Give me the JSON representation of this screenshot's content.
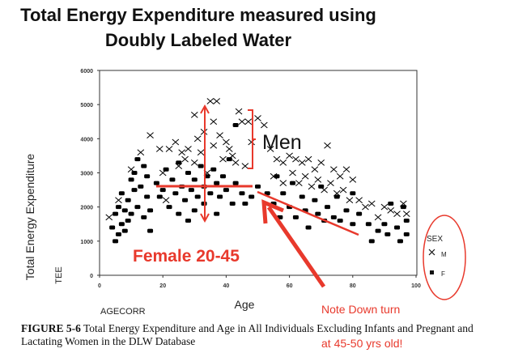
{
  "title_lines": [
    "Total Energy Expenditure measured using",
    "Doubly Labeled Water"
  ],
  "caption": {
    "label": "FIGURE 5-6",
    "line1": " Total Energy Expenditure and Age in All Individuals Excluding Infants and Pregnant and",
    "line2": "Lactating Women in the DLW Database"
  },
  "annotations": {
    "men": "Men",
    "female": "Female 20-45",
    "note1": "Note Down turn",
    "note2": "at 45-50 yrs old!"
  },
  "colors": {
    "annotation": "#e8392c",
    "points": "#000000"
  },
  "chart_data": {
    "type": "scatter",
    "xlabel": "Age",
    "xlabel_var": "AGECORR",
    "ylabel": "Total Energy Expenditure",
    "ylabel_var": "TEE",
    "xlim": [
      0,
      100
    ],
    "ylim": [
      0,
      6000
    ],
    "xticks": [
      0,
      20,
      40,
      60,
      80,
      100
    ],
    "yticks": [
      0,
      1000,
      2000,
      3000,
      4000,
      5000,
      6000
    ],
    "grid": false,
    "legend": {
      "title": "SEX",
      "placement": "right",
      "entries": [
        {
          "name": "M",
          "marker": "x"
        },
        {
          "name": "F",
          "marker": "filled-square"
        }
      ]
    },
    "series": [
      {
        "name": "M",
        "marker": "x",
        "points": [
          [
            3,
            1700
          ],
          [
            6,
            2200
          ],
          [
            10,
            3100
          ],
          [
            13,
            3600
          ],
          [
            16,
            4100
          ],
          [
            19,
            3700
          ],
          [
            20,
            3000
          ],
          [
            21,
            2200
          ],
          [
            22,
            3700
          ],
          [
            24,
            3900
          ],
          [
            25,
            3200
          ],
          [
            26,
            3600
          ],
          [
            28,
            3700
          ],
          [
            30,
            4700
          ],
          [
            30,
            3300
          ],
          [
            31,
            4000
          ],
          [
            33,
            4200
          ],
          [
            34,
            3000
          ],
          [
            35,
            5100
          ],
          [
            36,
            4500
          ],
          [
            37,
            5100
          ],
          [
            38,
            4100
          ],
          [
            39,
            3400
          ],
          [
            40,
            3900
          ],
          [
            42,
            3500
          ],
          [
            44,
            4800
          ],
          [
            45,
            4500
          ],
          [
            46,
            3200
          ],
          [
            47,
            4500
          ],
          [
            48,
            3900
          ],
          [
            50,
            4600
          ],
          [
            52,
            4400
          ],
          [
            54,
            3700
          ],
          [
            55,
            2900
          ],
          [
            56,
            3400
          ],
          [
            58,
            3300
          ],
          [
            58,
            2700
          ],
          [
            60,
            3500
          ],
          [
            62,
            3400
          ],
          [
            63,
            2700
          ],
          [
            64,
            3300
          ],
          [
            66,
            3400
          ],
          [
            67,
            2600
          ],
          [
            68,
            3100
          ],
          [
            70,
            3300
          ],
          [
            71,
            2500
          ],
          [
            72,
            3800
          ],
          [
            74,
            3100
          ],
          [
            75,
            2400
          ],
          [
            76,
            2900
          ],
          [
            78,
            3100
          ],
          [
            79,
            2200
          ],
          [
            80,
            2800
          ],
          [
            82,
            2200
          ],
          [
            84,
            2000
          ],
          [
            86,
            2100
          ],
          [
            88,
            1700
          ],
          [
            90,
            2000
          ],
          [
            92,
            1900
          ],
          [
            94,
            1800
          ],
          [
            96,
            2100
          ],
          [
            97,
            1800
          ],
          [
            27,
            3400
          ],
          [
            32,
            3600
          ],
          [
            36,
            3800
          ],
          [
            41,
            3700
          ],
          [
            43,
            3300
          ],
          [
            61,
            3000
          ],
          [
            65,
            2900
          ],
          [
            69,
            2800
          ],
          [
            73,
            2700
          ],
          [
            77,
            2500
          ]
        ]
      },
      {
        "name": "F",
        "marker": "filled-square",
        "points": [
          [
            4,
            1400
          ],
          [
            5,
            1000
          ],
          [
            5,
            1800
          ],
          [
            6,
            1200
          ],
          [
            6,
            2000
          ],
          [
            7,
            1500
          ],
          [
            7,
            2400
          ],
          [
            8,
            1300
          ],
          [
            8,
            1900
          ],
          [
            9,
            2200
          ],
          [
            9,
            1600
          ],
          [
            10,
            2800
          ],
          [
            10,
            1800
          ],
          [
            11,
            2500
          ],
          [
            11,
            3000
          ],
          [
            12,
            2000
          ],
          [
            12,
            3400
          ],
          [
            13,
            2600
          ],
          [
            14,
            1700
          ],
          [
            14,
            3200
          ],
          [
            15,
            2300
          ],
          [
            15,
            2900
          ],
          [
            16,
            1900
          ],
          [
            16,
            1300
          ],
          [
            18,
            2700
          ],
          [
            19,
            2300
          ],
          [
            20,
            2500
          ],
          [
            21,
            3100
          ],
          [
            22,
            2000
          ],
          [
            23,
            2800
          ],
          [
            24,
            2400
          ],
          [
            25,
            3300
          ],
          [
            25,
            1800
          ],
          [
            26,
            2600
          ],
          [
            27,
            2200
          ],
          [
            28,
            3000
          ],
          [
            28,
            1600
          ],
          [
            29,
            2500
          ],
          [
            30,
            2800
          ],
          [
            30,
            1900
          ],
          [
            31,
            2300
          ],
          [
            32,
            3200
          ],
          [
            33,
            2600
          ],
          [
            33,
            2100
          ],
          [
            34,
            2900
          ],
          [
            35,
            2400
          ],
          [
            36,
            3100
          ],
          [
            37,
            2700
          ],
          [
            37,
            1800
          ],
          [
            38,
            2300
          ],
          [
            39,
            2900
          ],
          [
            40,
            2500
          ],
          [
            41,
            3400
          ],
          [
            42,
            2100
          ],
          [
            43,
            2700
          ],
          [
            43,
            4400
          ],
          [
            45,
            2400
          ],
          [
            46,
            2100
          ],
          [
            48,
            2300
          ],
          [
            50,
            2600
          ],
          [
            53,
            2400
          ],
          [
            55,
            2100
          ],
          [
            56,
            2900
          ],
          [
            57,
            1700
          ],
          [
            58,
            2400
          ],
          [
            60,
            2000
          ],
          [
            61,
            2700
          ],
          [
            62,
            1700
          ],
          [
            64,
            2300
          ],
          [
            65,
            1900
          ],
          [
            66,
            1400
          ],
          [
            68,
            2200
          ],
          [
            69,
            1800
          ],
          [
            70,
            2600
          ],
          [
            71,
            1600
          ],
          [
            72,
            2000
          ],
          [
            74,
            1700
          ],
          [
            75,
            2300
          ],
          [
            76,
            1600
          ],
          [
            78,
            1900
          ],
          [
            80,
            2400
          ],
          [
            80,
            1500
          ],
          [
            82,
            1800
          ],
          [
            85,
            1500
          ],
          [
            86,
            1000
          ],
          [
            88,
            1300
          ],
          [
            90,
            1500
          ],
          [
            91,
            1200
          ],
          [
            92,
            2100
          ],
          [
            94,
            1400
          ],
          [
            95,
            1000
          ],
          [
            96,
            2000
          ],
          [
            97,
            1600
          ],
          [
            97,
            1200
          ]
        ]
      }
    ]
  }
}
